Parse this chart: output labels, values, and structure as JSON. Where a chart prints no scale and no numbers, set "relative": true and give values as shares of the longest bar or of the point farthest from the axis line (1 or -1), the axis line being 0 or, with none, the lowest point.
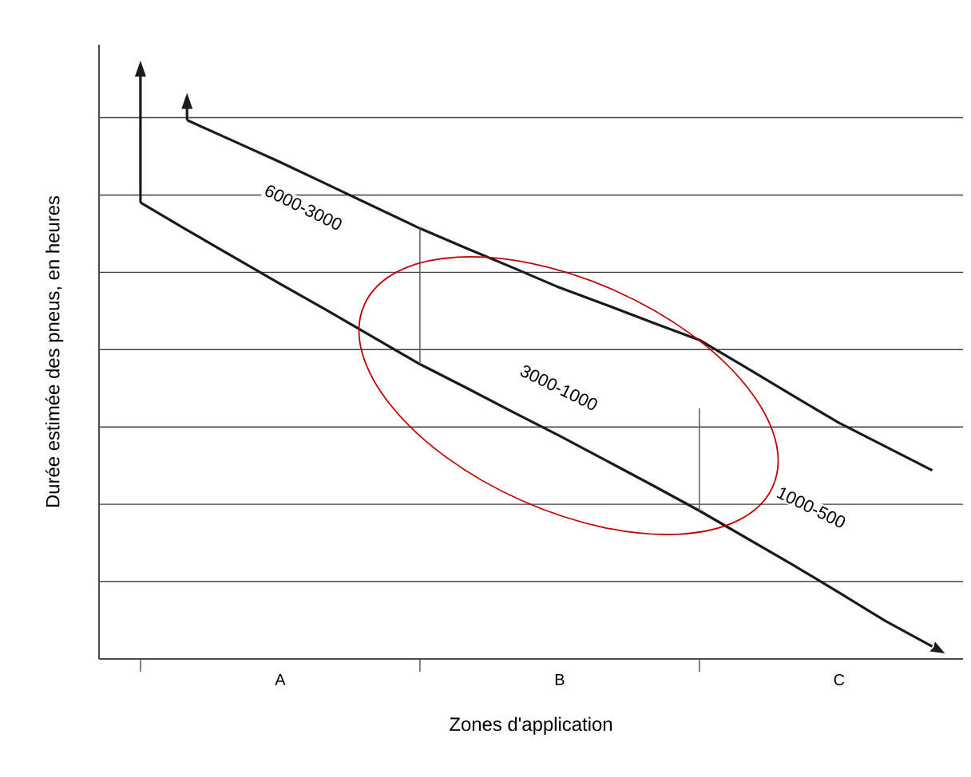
{
  "chart_data": {
    "type": "line",
    "relative": true,
    "xlabel": "Zones d'application",
    "ylabel": "Durée estimée des pneus, en heures",
    "categories": [
      null,
      null,
      null,
      "A",
      null,
      null,
      null,
      null,
      null,
      "B",
      null,
      null,
      null,
      null,
      null,
      "C",
      null,
      null
    ],
    "grid": "y",
    "marker": "none",
    "line_style": "solid",
    "series": [
      {
        "color": "#1a1a1a",
        "values": [
          0.847,
          0.796,
          0.746,
          0.696,
          0.647,
          0.597,
          0.547,
          0.503,
          0.458,
          0.414,
          0.368,
          0.322,
          0.275,
          0.225,
          0.175,
          0.123,
          0.07,
          0.023
        ]
      },
      {
        "color": "#1a1a1a",
        "values": [
          null,
          1.0,
          0.961,
          0.922,
          0.881,
          0.84,
          0.799,
          0.762,
          0.726,
          0.689,
          0.657,
          0.624,
          0.592,
          0.541,
          0.489,
          0.438,
          0.394,
          0.35
        ]
      }
    ],
    "annotations": [
      "6000-3000",
      "3000-1000",
      "1000-500"
    ]
  }
}
